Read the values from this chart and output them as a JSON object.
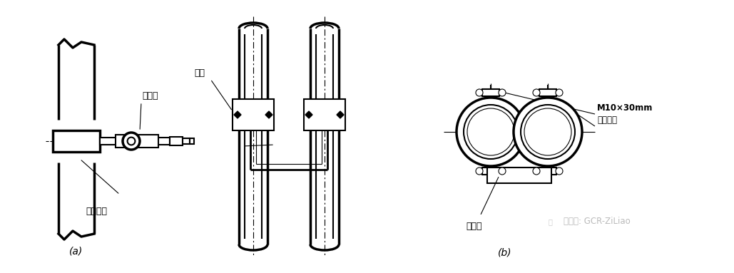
{
  "bg_color": "#ffffff",
  "label_a": "(a)",
  "label_b": "(b)",
  "text_lianjiexian": "连接线",
  "text_jinshuguandao": "金属管道",
  "text_baogua": "抱箍",
  "text_kuajiexian": "跨接线",
  "text_bolt_1": "M10×30mm",
  "text_bolt_2": "镀锌螺栓",
  "text_watermark": "微信号: GCR-ZiLiao",
  "lw": 1.5,
  "lw_thick": 2.5,
  "lw_thin": 0.8
}
